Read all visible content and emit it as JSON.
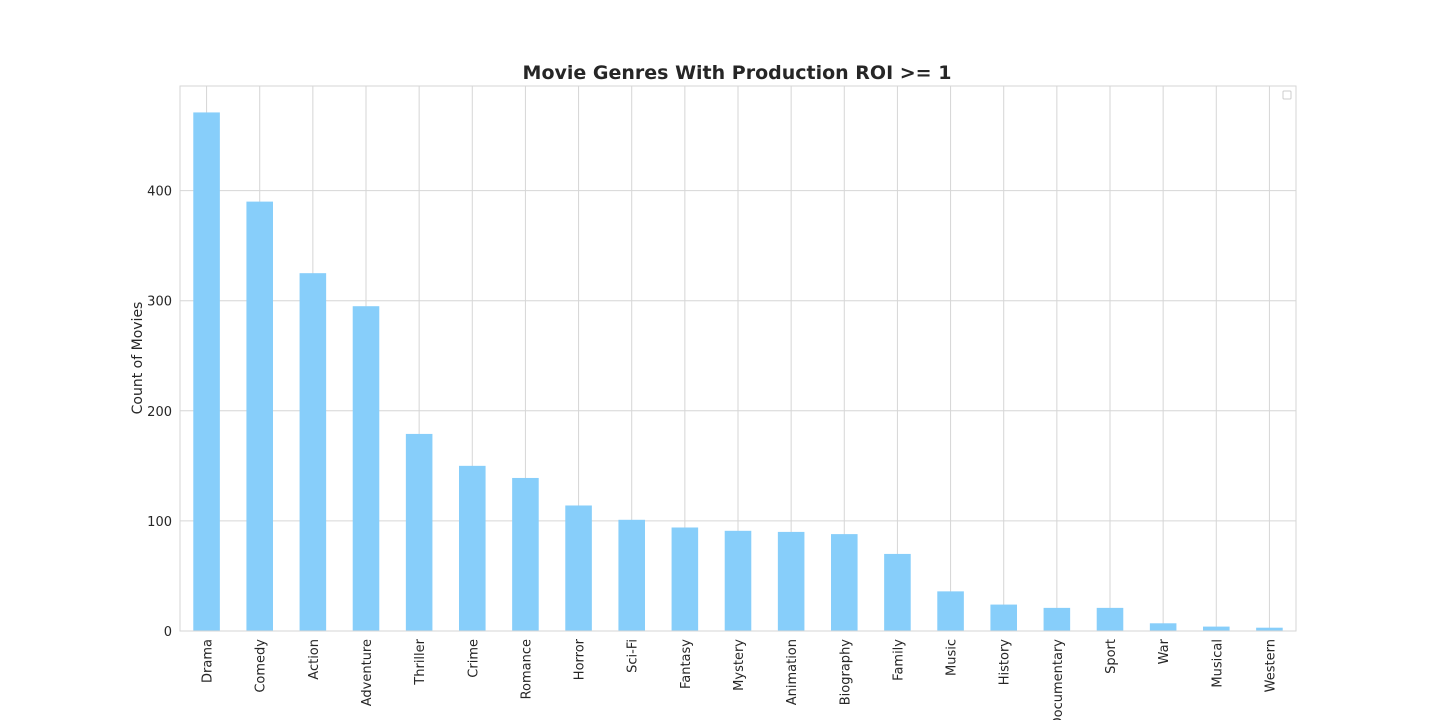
{
  "chart_data": {
    "type": "bar",
    "title": "Movie Genres With Production ROI >= 1",
    "xlabel": "",
    "ylabel": "Count of Movies",
    "ylim": [
      0,
      495
    ],
    "yticks": [
      0,
      100,
      200,
      300,
      400
    ],
    "grid": true,
    "legend": "top-right (empty)",
    "bar_color": "#87cefa",
    "categories": [
      "Drama",
      "Comedy",
      "Action",
      "Adventure",
      "Thriller",
      "Crime",
      "Romance",
      "Horror",
      "Sci-Fi",
      "Fantasy",
      "Mystery",
      "Animation",
      "Biography",
      "Family",
      "Music",
      "History",
      "Documentary",
      "Sport",
      "War",
      "Musical",
      "Western"
    ],
    "values": [
      471,
      390,
      325,
      295,
      179,
      150,
      139,
      114,
      101,
      94,
      91,
      90,
      88,
      70,
      36,
      24,
      21,
      21,
      7,
      4,
      3
    ]
  }
}
